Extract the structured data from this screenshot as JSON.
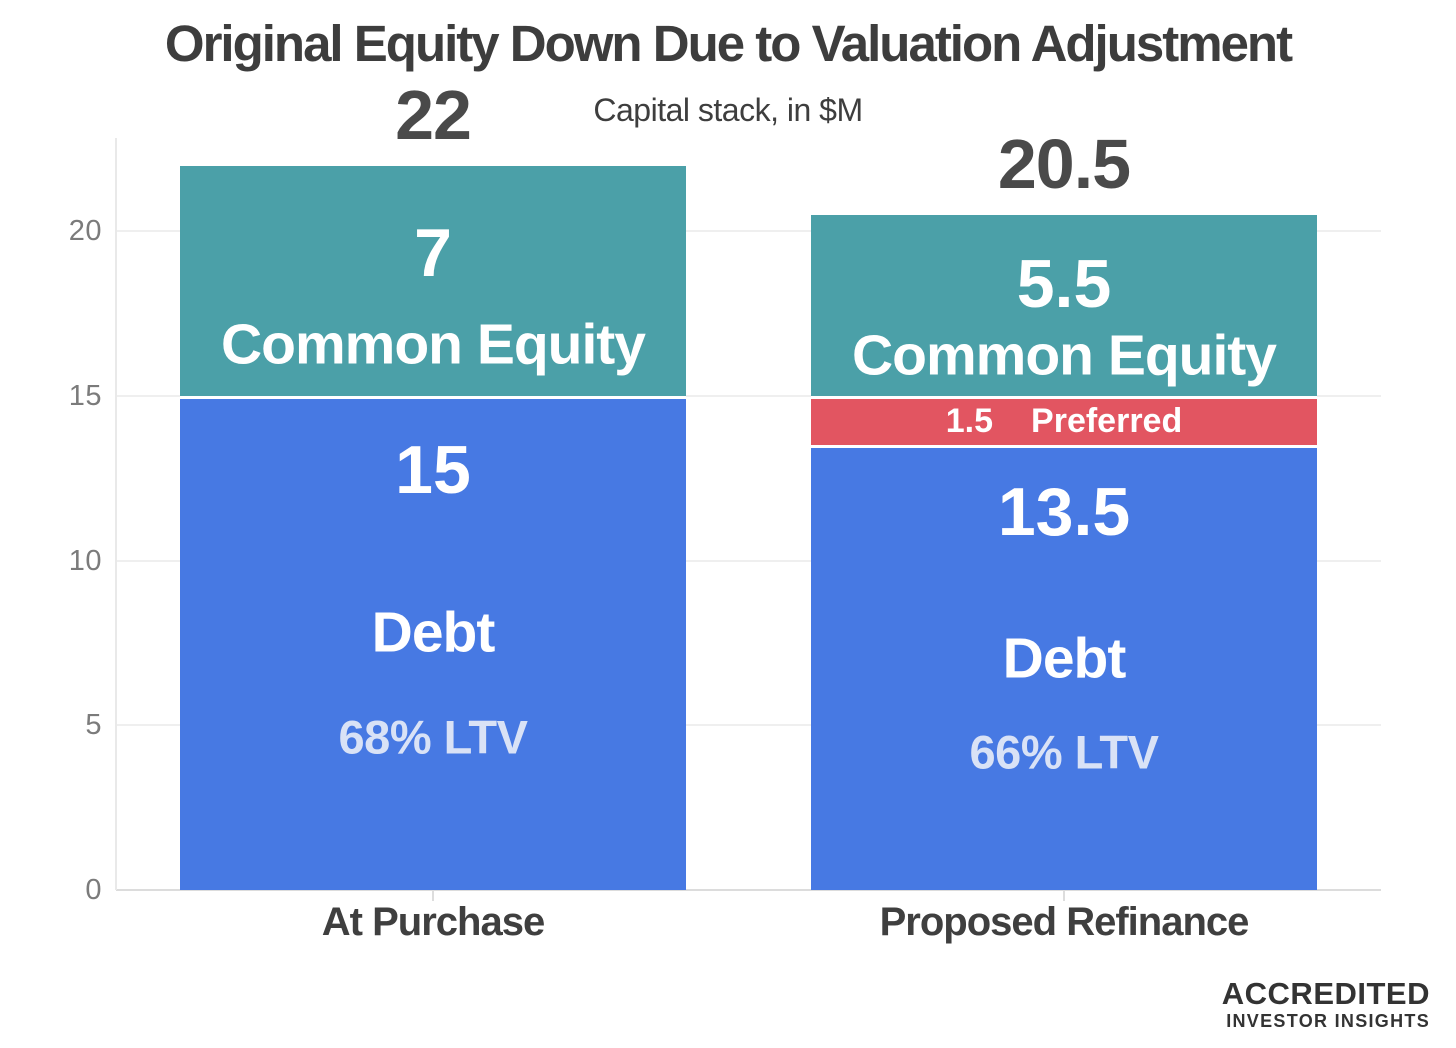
{
  "chart_data": {
    "type": "bar",
    "stacked": true,
    "title": "Original Equity Down Due to Valuation Adjustment",
    "subtitle": "Capital stack, in $M",
    "categories": [
      "At Purchase",
      "Proposed Refinance"
    ],
    "totals": [
      "22",
      "20.5"
    ],
    "y_ticks": [
      0,
      5,
      10,
      15,
      20
    ],
    "ylim": [
      0,
      22
    ],
    "grid": true,
    "legend": "none",
    "series": [
      {
        "name": "Debt",
        "color": "#4779e3",
        "values": [
          15,
          13.5
        ],
        "value_labels": [
          "15",
          "13.5"
        ],
        "sublabels": [
          "68% LTV",
          "66% LTV"
        ]
      },
      {
        "name": "Preferred",
        "color": "#e25561",
        "values": [
          0,
          1.5
        ],
        "value_labels": [
          "",
          "1.5"
        ]
      },
      {
        "name": "Common Equity",
        "color": "#4ba0a8",
        "values": [
          7,
          5.5
        ],
        "value_labels": [
          "7",
          "5.5"
        ]
      }
    ]
  },
  "colors": {
    "debt": "#4779e3",
    "preferred": "#e25561",
    "common_equity": "#4ba0a8",
    "text_dark": "#3d3d3d",
    "tick_gray": "#7b7b7b",
    "ltv_text": "#d9e2f6"
  },
  "logo": {
    "line1": "ACCREDITED",
    "line2": "INVESTOR INSIGHTS"
  }
}
